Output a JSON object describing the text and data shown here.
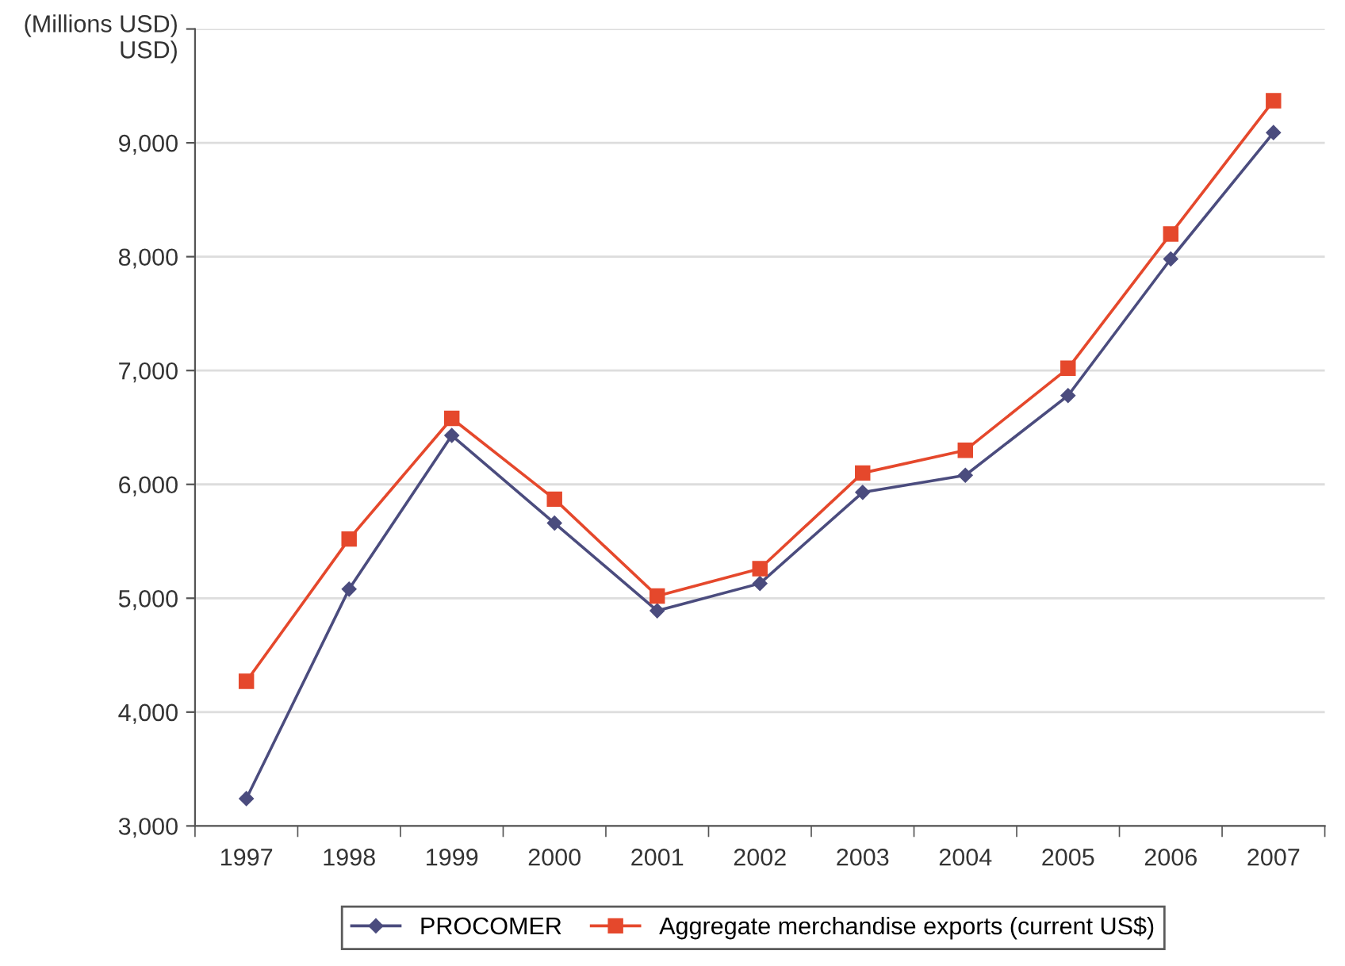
{
  "chart_data": {
    "type": "line",
    "ylabel": "(Millions USD)\nUSD)",
    "categories": [
      "1997",
      "1998",
      "1999",
      "2000",
      "2001",
      "2002",
      "2003",
      "2004",
      "2005",
      "2006",
      "2007"
    ],
    "series": [
      {
        "name": "PROCOMER",
        "color": "#4b4c7e",
        "marker": "diamond",
        "values": [
          3240,
          5080,
          6430,
          5660,
          4890,
          5130,
          5930,
          6080,
          6780,
          7980,
          9090
        ]
      },
      {
        "name": "Aggregate merchandise exports (current US$)",
        "color": "#e5482c",
        "marker": "square",
        "values": [
          4270,
          5520,
          6580,
          5870,
          5020,
          5260,
          6100,
          6300,
          7020,
          8200,
          9370
        ]
      }
    ],
    "ylim": [
      3000,
      10000
    ],
    "yticks": [
      {
        "value": 3000,
        "label": "3,000"
      },
      {
        "value": 4000,
        "label": "4,000"
      },
      {
        "value": 5000,
        "label": "5,000"
      },
      {
        "value": 6000,
        "label": "6,000"
      },
      {
        "value": 7000,
        "label": "7,000"
      },
      {
        "value": 8000,
        "label": "8,000"
      },
      {
        "value": 9000,
        "label": "9,000"
      },
      {
        "value": 10000,
        "label": null
      }
    ],
    "grid": "y",
    "legend": "bottom",
    "line_style": "solid"
  }
}
